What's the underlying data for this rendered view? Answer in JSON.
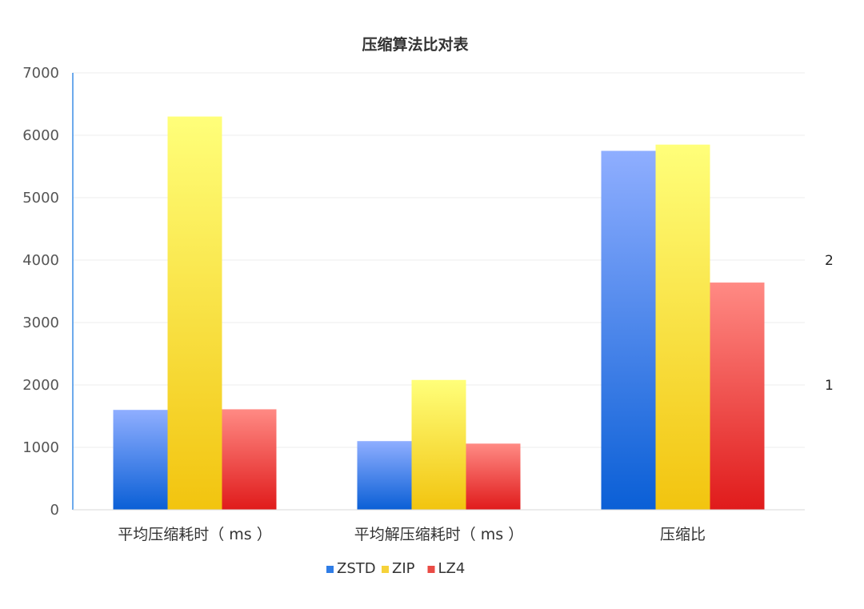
{
  "chart_data": {
    "type": "bar",
    "title": "压缩算法比对表",
    "categories": [
      "平均压缩耗时（ ms ）",
      "平均解压缩耗时（ ms ）",
      "压缩比"
    ],
    "series": [
      {
        "name": "ZSTD",
        "values": [
          1600,
          1100,
          5750
        ],
        "color_top": "#8faeff",
        "color_bottom": "#0a5fd6",
        "legend_color": "#2f7de6"
      },
      {
        "name": "ZIP",
        "values": [
          6300,
          2080,
          5850
        ],
        "color_top": "#ffff7a",
        "color_bottom": "#f2c40f",
        "legend_color": "#f6d23a"
      },
      {
        "name": "LZ4",
        "values": [
          1610,
          1060,
          3640
        ],
        "color_top": "#ff8a84",
        "color_bottom": "#e01b1b",
        "legend_color": "#ea4b45"
      }
    ],
    "ylim": [
      0,
      7000
    ],
    "y_ticks": [
      0,
      1000,
      2000,
      3000,
      4000,
      5000,
      6000,
      7000
    ],
    "right_axis_labels": [
      "2",
      "1"
    ],
    "right_axis_values": [
      2,
      1
    ],
    "grid": true,
    "legend_position": "bottom"
  }
}
